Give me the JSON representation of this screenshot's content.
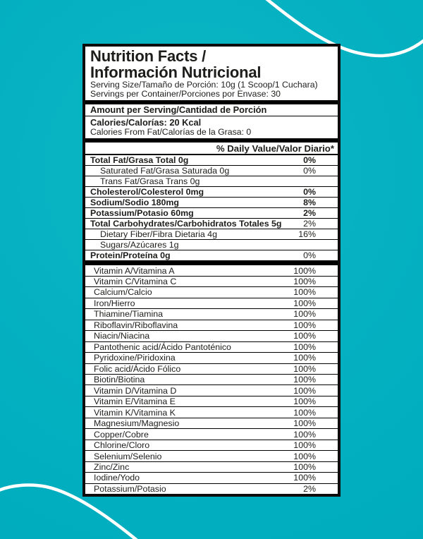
{
  "colors": {
    "background_teal": "#00aebf",
    "curve_white": "#ffffff",
    "label_background": "#ffffff",
    "label_border": "#0d0d0d",
    "text": "#1d1d1b"
  },
  "label": {
    "title_line1": "Nutrition Facts /",
    "title_line2": "Información Nutricional",
    "serving_size": "Serving Size/Tamaño de Porción: 10g (1 Scoop/1 Cuchara)",
    "servings_per_container": "Servings per Container/Porciones por Envase: 30",
    "amount_per_serving": "Amount per Serving/Cantidad de Porción",
    "calories": "Calories/Calorías: 20 Kcal",
    "calories_from_fat": "Calories From Fat/Calorías de la Grasa: 0",
    "daily_value_header": "% Daily Value/Valor Diario*",
    "nutrients": [
      {
        "label": "Total Fat/Grasa Total 0g",
        "value": "0%",
        "labelBold": true,
        "valueBold": true,
        "indent": false
      },
      {
        "label": "Saturated Fat/Grasa Saturada 0g",
        "value": "0%",
        "labelBold": false,
        "valueBold": false,
        "indent": true
      },
      {
        "label": "Trans Fat/Grasa Trans 0g",
        "value": "",
        "labelBold": false,
        "valueBold": false,
        "indent": true
      },
      {
        "label": "Cholesterol/Colesterol 0mg",
        "value": "0%",
        "labelBold": true,
        "valueBold": true,
        "indent": false
      },
      {
        "label": "Sodium/Sodio 180mg",
        "value": "8%",
        "labelBold": true,
        "valueBold": true,
        "indent": false
      },
      {
        "label": "Potassium/Potasio 60mg",
        "value": "2%",
        "labelBold": true,
        "valueBold": true,
        "indent": false
      },
      {
        "label": "Total Carbohydrates/Carbohidratos Totales 5g",
        "value": "2%",
        "labelBold": true,
        "valueBold": false,
        "indent": false
      },
      {
        "label": "Dietary Fiber/Fibra Dietaria 4g",
        "value": "16%",
        "labelBold": false,
        "valueBold": false,
        "indent": true
      },
      {
        "label": "Sugars/Azúcares 1g",
        "value": "",
        "labelBold": false,
        "valueBold": false,
        "indent": true
      },
      {
        "label": "Protein/Proteína 0g",
        "value": "0%",
        "labelBold": true,
        "valueBold": false,
        "indent": false
      }
    ],
    "micronutrients": [
      {
        "label": "Vitamin A/Vitamina A",
        "value": "100%"
      },
      {
        "label": "Vitamin C/Vitamina C",
        "value": "100%"
      },
      {
        "label": "Calcium/Calcio",
        "value": "100%"
      },
      {
        "label": "Iron/Hierro",
        "value": "100%"
      },
      {
        "label": "Thiamine/Tiamina",
        "value": "100%"
      },
      {
        "label": "Riboflavin/Riboflavina",
        "value": "100%"
      },
      {
        "label": "Niacin/Niacina",
        "value": "100%"
      },
      {
        "label": "Pantothenic acid/Ácido Pantoténico",
        "value": "100%"
      },
      {
        "label": "Pyridoxine/Piridoxina",
        "value": "100%"
      },
      {
        "label": "Folic acid/Ácido Fólico",
        "value": "100%"
      },
      {
        "label": "Biotin/Biotina",
        "value": "100%"
      },
      {
        "label": "Vitamin D/Vitamina D",
        "value": "100%"
      },
      {
        "label": "Vitamin E/Vitamina E",
        "value": "100%"
      },
      {
        "label": "Vitamin K/Vitamina K",
        "value": "100%"
      },
      {
        "label": "Magnesium/Magnesio",
        "value": "100%"
      },
      {
        "label": "Copper/Cobre",
        "value": "100%"
      },
      {
        "label": "Chlorine/Cloro",
        "value": "100%"
      },
      {
        "label": "Selenium/Selenio",
        "value": "100%"
      },
      {
        "label": "Zinc/Zinc",
        "value": "100%"
      },
      {
        "label": "Iodine/Yodo",
        "value": "100%"
      },
      {
        "label": "Potassium/Potasio",
        "value": "2%"
      }
    ]
  }
}
